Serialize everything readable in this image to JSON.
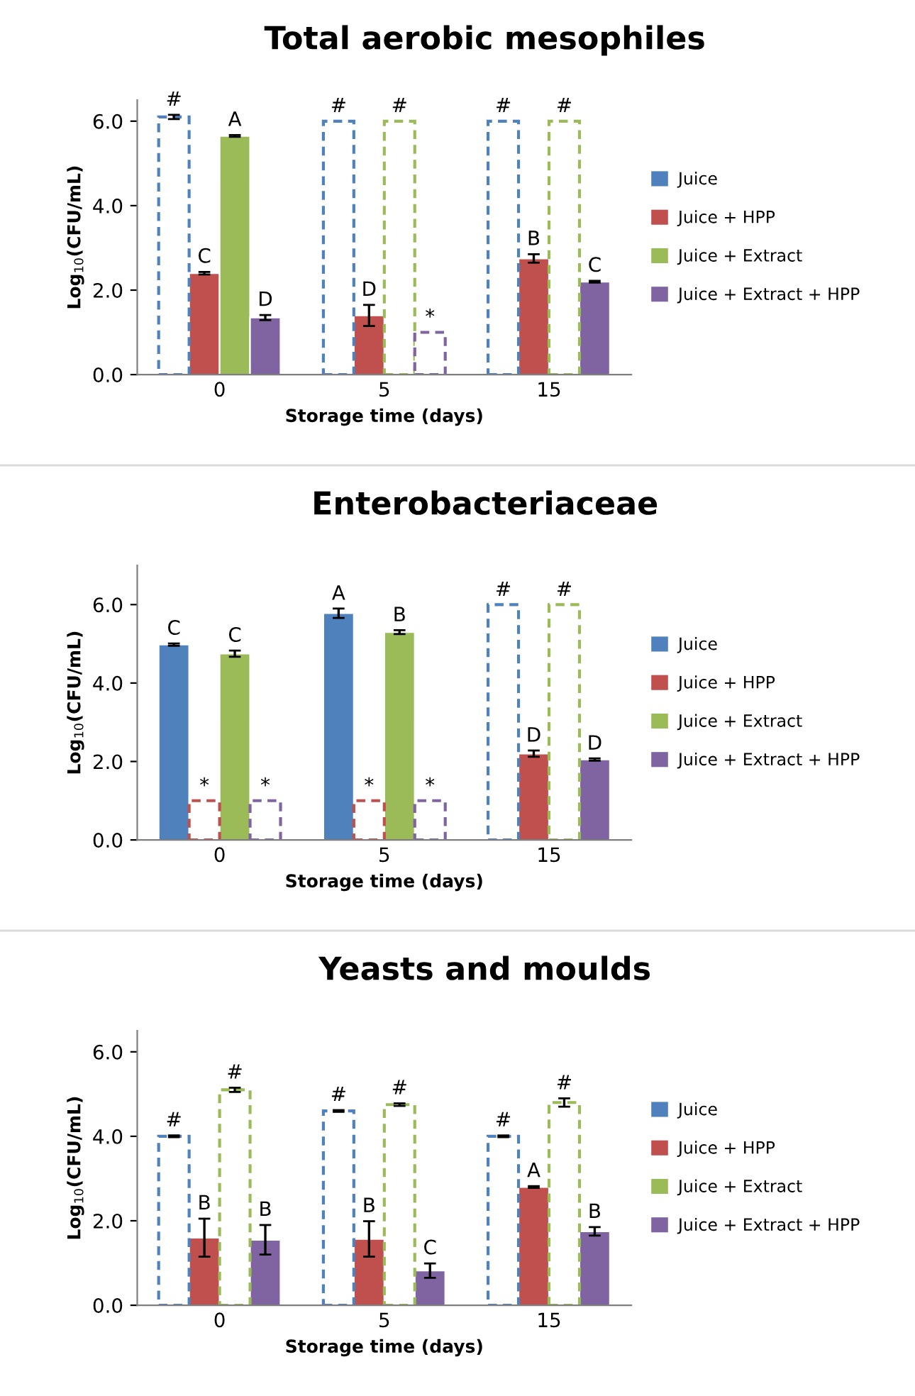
{
  "chart_data": [
    {
      "type": "bar",
      "title": "Total aerobic mesophiles",
      "xlabel": "Storage time (days)",
      "ylabel": "Log$_{10}$(CFU/mL)",
      "categories": [
        "0",
        "5",
        "15"
      ],
      "ylim": [
        0,
        6.5
      ],
      "yticks": [
        {
          "value": 0,
          "label": "0.0"
        },
        {
          "value": 2,
          "label": "2.0"
        },
        {
          "value": 4,
          "label": "4.0"
        },
        {
          "value": 6,
          "label": "6.0"
        }
      ],
      "legend": "right",
      "series": [
        {
          "name": "Juice",
          "color": "#4f81bd",
          "values": [
            null,
            null,
            null
          ]
        },
        {
          "name": "Juice + HPP",
          "color": "#c0504d",
          "values": [
            2.4,
            1.4,
            2.75
          ],
          "errors": [
            0.03,
            0.25,
            0.1
          ],
          "value_labels": [
            "C",
            "D",
            "B"
          ]
        },
        {
          "name": "Juice + Extract",
          "color": "#9bbb59",
          "values": [
            5.65,
            null,
            null
          ],
          "errors": [
            0.02,
            null,
            null
          ],
          "value_labels": [
            "A",
            null,
            null
          ]
        },
        {
          "name": "Juice + Extract + HPP",
          "color": "#8064a2",
          "values": [
            1.35,
            null,
            2.2
          ],
          "errors": [
            0.06,
            null,
            0.02
          ],
          "value_labels": [
            "D",
            null,
            "C"
          ]
        },
        {
          "color": "#4f81bd",
          "line_style": "dashed",
          "values": [
            6.1,
            6.0,
            6.0
          ],
          "errors": [
            0.05,
            null,
            null
          ],
          "value_labels": [
            "#",
            "#",
            "#"
          ]
        },
        {
          "color": "#9bbb59",
          "line_style": "dashed",
          "values": [
            null,
            6.0,
            6.0
          ],
          "value_labels": [
            null,
            "#",
            "#"
          ]
        },
        {
          "color": "#8064a2",
          "line_style": "dashed",
          "values": [
            null,
            1.0,
            null
          ],
          "value_labels": [
            null,
            "*",
            null
          ]
        }
      ]
    },
    {
      "type": "bar",
      "title": "Enterobacteriaceae",
      "xlabel": "Storage time (days)",
      "ylabel": "Log$_{10}$(CFU/mL)",
      "categories": [
        "0",
        "5",
        "15"
      ],
      "ylim": [
        0,
        7.0
      ],
      "yticks": [
        {
          "value": 0,
          "label": "0.0"
        },
        {
          "value": 2,
          "label": "2.0"
        },
        {
          "value": 4,
          "label": "4.0"
        },
        {
          "value": 6,
          "label": "6.0"
        }
      ],
      "legend": "right",
      "series": [
        {
          "name": "Juice",
          "color": "#4f81bd",
          "values": [
            4.98,
            5.78,
            null
          ],
          "errors": [
            0.03,
            0.12,
            null
          ],
          "value_labels": [
            "C",
            "A",
            null
          ]
        },
        {
          "name": "Juice + HPP",
          "color": "#c0504d",
          "values": [
            null,
            null,
            2.2
          ],
          "errors": [
            null,
            null,
            0.08
          ],
          "value_labels": [
            null,
            null,
            "D"
          ]
        },
        {
          "name": "Juice + Extract",
          "color": "#9bbb59",
          "values": [
            4.75,
            5.3,
            null
          ],
          "errors": [
            0.08,
            0.05,
            null
          ],
          "value_labels": [
            "C",
            "B",
            null
          ]
        },
        {
          "name": "Juice + Extract + HPP",
          "color": "#8064a2",
          "values": [
            null,
            null,
            2.05
          ],
          "errors": [
            null,
            null,
            0.03
          ],
          "value_labels": [
            null,
            null,
            "D"
          ]
        },
        {
          "color": "#4f81bd",
          "line_style": "dashed",
          "values": [
            null,
            null,
            6.0
          ],
          "value_labels": [
            null,
            null,
            "#"
          ]
        },
        {
          "color": "#c0504d",
          "line_style": "dashed",
          "values": [
            1.0,
            1.0,
            null
          ],
          "value_labels": [
            "*",
            "*",
            null
          ]
        },
        {
          "color": "#9bbb59",
          "line_style": "dashed",
          "values": [
            null,
            null,
            6.0
          ],
          "value_labels": [
            null,
            null,
            "#"
          ]
        },
        {
          "color": "#8064a2",
          "line_style": "dashed",
          "values": [
            1.0,
            1.0,
            null
          ],
          "value_labels": [
            "*",
            "*",
            null
          ]
        }
      ]
    },
    {
      "type": "bar",
      "title": "Yeasts and moulds",
      "xlabel": "Storage time (days)",
      "ylabel": "Log$_{10}$(CFU/mL)",
      "categories": [
        "0",
        "5",
        "15"
      ],
      "ylim": [
        0,
        6.5
      ],
      "yticks": [
        {
          "value": 0,
          "label": "0.0"
        },
        {
          "value": 2,
          "label": "2.0"
        },
        {
          "value": 4,
          "label": "4.0"
        },
        {
          "value": 6,
          "label": "6.0"
        }
      ],
      "legend": "right",
      "series": [
        {
          "name": "Juice",
          "color": "#4f81bd",
          "values": [
            null,
            null,
            null
          ]
        },
        {
          "name": "Juice + HPP",
          "color": "#c0504d",
          "values": [
            1.6,
            1.57,
            2.8
          ],
          "errors": [
            0.45,
            0.42,
            0.02
          ],
          "value_labels": [
            "B",
            "B",
            "A"
          ]
        },
        {
          "name": "Juice + Extract",
          "color": "#9bbb59",
          "values": [
            null,
            null,
            null
          ]
        },
        {
          "name": "Juice + Extract + HPP",
          "color": "#8064a2",
          "values": [
            1.55,
            0.82,
            1.75
          ],
          "errors": [
            0.35,
            0.17,
            0.1
          ],
          "value_labels": [
            "B",
            "C",
            "B"
          ]
        },
        {
          "color": "#4f81bd",
          "line_style": "dashed",
          "values": [
            4.0,
            4.6,
            4.0
          ],
          "errors": [
            0.02,
            0.02,
            0.02
          ],
          "value_labels": [
            "#",
            "#",
            "#"
          ]
        },
        {
          "color": "#9bbb59",
          "line_style": "dashed",
          "values": [
            5.1,
            4.75,
            4.8
          ],
          "errors": [
            0.05,
            0.03,
            0.1
          ],
          "value_labels": [
            "#",
            "#",
            "#"
          ]
        }
      ]
    }
  ]
}
